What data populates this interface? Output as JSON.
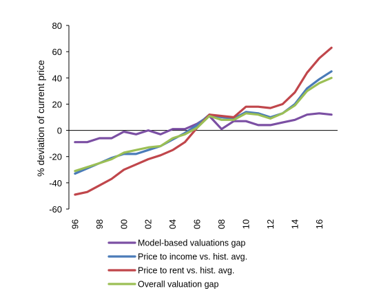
{
  "chart_data": {
    "type": "line",
    "title": "",
    "xlabel": "",
    "ylabel": "% deviation of current price",
    "x": [
      1996,
      1997,
      1998,
      1999,
      2000,
      2001,
      2002,
      2003,
      2004,
      2005,
      2006,
      2007,
      2008,
      2009,
      2010,
      2011,
      2012,
      2013,
      2014,
      2015,
      2016,
      2017
    ],
    "x_tick_labels": [
      "96",
      "98",
      "00",
      "02",
      "04",
      "06",
      "08",
      "10",
      "12",
      "14",
      "16"
    ],
    "x_tick_years": [
      1996,
      1998,
      2000,
      2002,
      2004,
      2006,
      2008,
      2010,
      2012,
      2014,
      2016
    ],
    "y_ticks": [
      80,
      60,
      40,
      20,
      0,
      -20,
      -40,
      -60
    ],
    "ylim": [
      -60,
      80
    ],
    "xlim": [
      1995.5,
      2017.5
    ],
    "grid": false,
    "legend_position": "bottom",
    "series": [
      {
        "name": "Model-based valuations gap",
        "color": "#7b4fa3",
        "values": [
          -9,
          -9,
          -6,
          -6,
          -1,
          -3,
          0,
          -3,
          1,
          1,
          5,
          11,
          1,
          7,
          7,
          4,
          4,
          6,
          8,
          12,
          13,
          12
        ]
      },
      {
        "name": "Price to income vs. hist. avg.",
        "color": "#4a7bb8",
        "values": [
          -33,
          -29,
          -25,
          -21,
          -18,
          -18,
          -15,
          -12,
          -7,
          -2,
          4,
          12,
          10,
          9,
          14,
          13,
          10,
          13,
          20,
          32,
          39,
          45
        ]
      },
      {
        "name": "Price to rent vs. hist. avg.",
        "color": "#c0464b",
        "values": [
          -49,
          -47,
          -42,
          -37,
          -30,
          -26,
          -22,
          -19,
          -15,
          -9,
          2,
          12,
          11,
          10,
          18,
          18,
          17,
          20,
          29,
          44,
          55,
          63
        ]
      },
      {
        "name": "Overall valuation gap",
        "color": "#9bbf55",
        "values": [
          -31,
          -28,
          -25,
          -22,
          -17,
          -15,
          -13,
          -12,
          -6,
          -3,
          2,
          11,
          8,
          8,
          13,
          12,
          9,
          13,
          19,
          30,
          36,
          40
        ]
      }
    ]
  }
}
